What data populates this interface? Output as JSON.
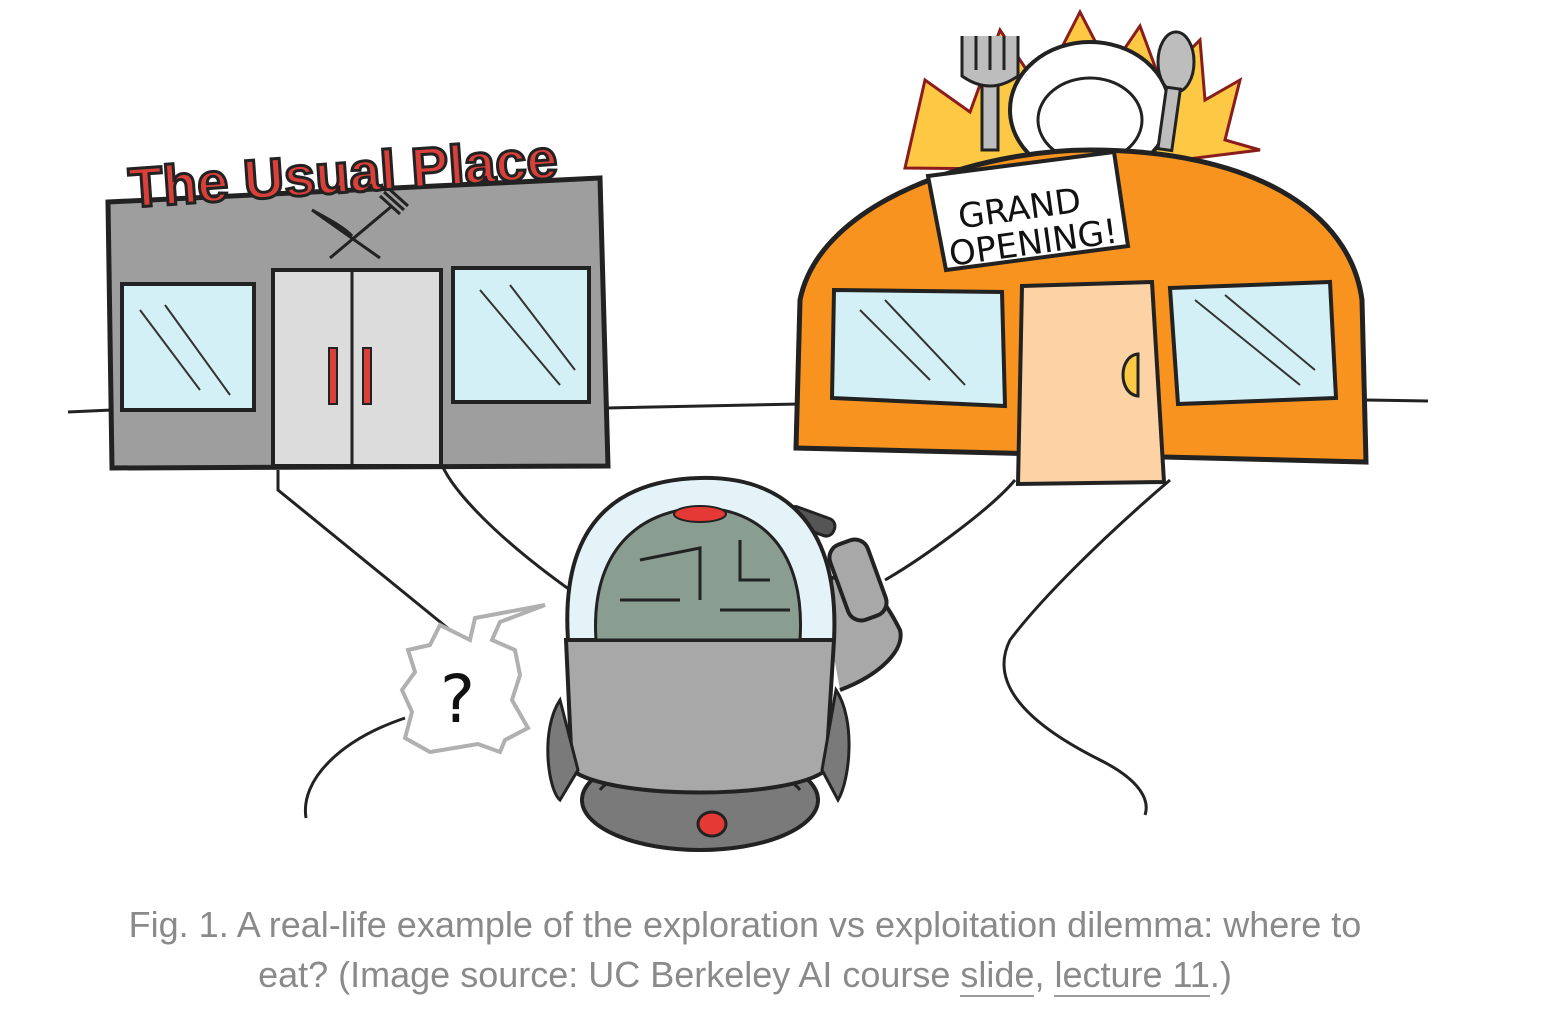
{
  "illustration": {
    "left_restaurant": {
      "name": "The Usual Place",
      "colors": {
        "building": "#9e9e9e",
        "sign": "#d9403a",
        "window": "#d4f0f7"
      }
    },
    "right_restaurant": {
      "sign_line1": "GRAND",
      "sign_line2": "OPENING!",
      "colors": {
        "building": "#f7931e",
        "door": "#fdd3a6",
        "burst": "#fdc844"
      }
    },
    "thought_bubble": {
      "text": "?"
    },
    "robot": {
      "colors": {
        "body": "#a8a8a8",
        "brain": "#8a9d91",
        "light": "#e53935"
      }
    }
  },
  "caption": {
    "prefix": "Fig. 1. A real-life example of the exploration vs exploitation dilemma: where to eat? (Image source: UC Berkeley AI course ",
    "link1": "slide",
    "separator": ", ",
    "link2": "lecture 11",
    "suffix": ".)"
  }
}
